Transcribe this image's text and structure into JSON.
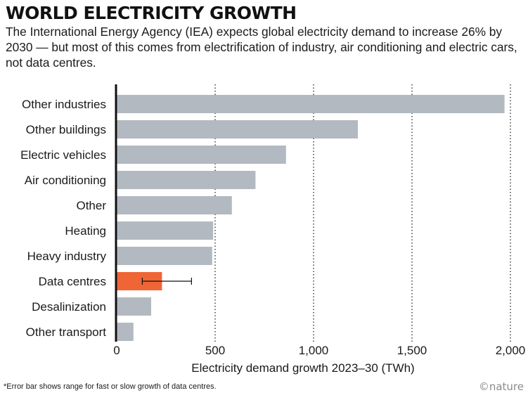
{
  "header": {
    "title": "WORLD ELECTRICITY GROWTH",
    "subtitle": "The International Energy Agency (IEA) expects global electricity demand to increase 26% by 2030 — but most of this comes from electrification of industry, air conditioning and electric cars, not data centres."
  },
  "footer": {
    "footnote": "*Error bar shows range for fast or slow growth of data centres.",
    "logo": "©nature"
  },
  "colors": {
    "bar": "#b2b9c1",
    "highlight": "#ef6535",
    "axis": "#111111",
    "grid": "#333333"
  },
  "chart_data": {
    "type": "bar",
    "orientation": "horizontal",
    "categories": [
      "Other industries",
      "Other buildings",
      "Electric vehicles",
      "Air conditioning",
      "Other",
      "Heating",
      "Heavy industry",
      "Data centres",
      "Desalinization",
      "Other transport"
    ],
    "values": [
      1970,
      1225,
      860,
      705,
      585,
      490,
      485,
      230,
      175,
      85
    ],
    "highlight": "Data centres",
    "error_bars": [
      {
        "category": "Data centres",
        "low": 130,
        "high": 380
      }
    ],
    "xlabel": "Electricity demand growth 2023–30 (TWh)",
    "xlim": [
      0,
      2000
    ],
    "xticks": [
      0,
      500,
      1000,
      1500,
      2000
    ],
    "xtick_labels": [
      "0",
      "500",
      "1,000",
      "1,500",
      "2,000"
    ],
    "grid": "vertical dotted"
  }
}
